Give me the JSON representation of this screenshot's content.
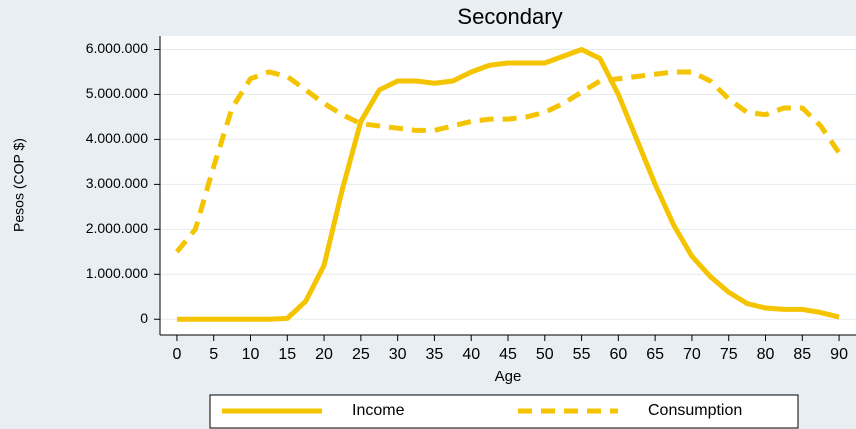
{
  "chart_data": {
    "type": "line",
    "title": "Secondary",
    "x_label": "Age",
    "y_label": "Pesos (COP $)",
    "x": [
      0,
      2.5,
      5,
      7.5,
      10,
      12.5,
      15,
      17.5,
      20,
      22.5,
      25,
      27.5,
      30,
      32.5,
      35,
      37.5,
      40,
      42.5,
      45,
      47.5,
      50,
      52.5,
      55,
      57.5,
      60,
      62.5,
      65,
      67.5,
      70,
      72.5,
      75,
      77.5,
      80,
      82.5,
      85,
      87.5,
      90
    ],
    "series": [
      {
        "name": "Income",
        "color": "#f5c400",
        "line_style": "solid",
        "values": [
          0,
          0,
          0,
          0,
          0,
          0,
          20000,
          400000,
          1200000,
          2900000,
          4400000,
          5100000,
          5300000,
          5300000,
          5250000,
          5300000,
          5500000,
          5650000,
          5700000,
          5700000,
          5700000,
          5850000,
          6000000,
          5800000,
          5000000,
          4000000,
          3000000,
          2100000,
          1400000,
          950000,
          600000,
          350000,
          250000,
          220000,
          220000,
          150000,
          50000
        ]
      },
      {
        "name": "Consumption",
        "color": "#f5c400",
        "line_style": "dashed",
        "values": [
          1500000,
          2000000,
          3400000,
          4700000,
          5350000,
          5500000,
          5400000,
          5100000,
          4800000,
          4550000,
          4350000,
          4300000,
          4250000,
          4200000,
          4200000,
          4300000,
          4400000,
          4450000,
          4450000,
          4500000,
          4600000,
          4800000,
          5050000,
          5300000,
          5350000,
          5400000,
          5450000,
          5500000,
          5500000,
          5300000,
          4900000,
          4600000,
          4550000,
          4700000,
          4700000,
          4300000,
          3700000
        ]
      }
    ],
    "xlim": [
      -2.3,
      92.3
    ],
    "xticks": [
      0,
      5,
      10,
      15,
      20,
      25,
      30,
      35,
      40,
      45,
      50,
      55,
      60,
      65,
      70,
      75,
      80,
      85,
      90
    ],
    "ylim": [
      -350000,
      6300000
    ],
    "yticks": [
      {
        "value": 0,
        "label": "0"
      },
      {
        "value": 1000000,
        "label": "1.000.000"
      },
      {
        "value": 2000000,
        "label": "2.000.000"
      },
      {
        "value": 3000000,
        "label": "3.000.000"
      },
      {
        "value": 4000000,
        "label": "4.000.000"
      },
      {
        "value": 5000000,
        "label": "5.000.000"
      },
      {
        "value": 6000000,
        "label": "6.000.000"
      }
    ],
    "grid": true
  }
}
